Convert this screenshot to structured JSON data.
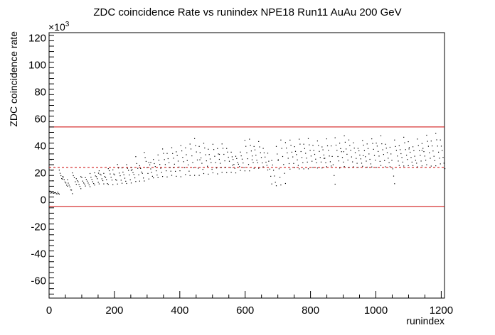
{
  "chart_data": {
    "type": "scatter",
    "title": "ZDC coincidence Rate vs runindex NPE18 Run11 AuAu 200 GeV",
    "xlabel": "runindex",
    "ylabel": "ZDC coincidence rate",
    "y_multiplier_label": "×10",
    "y_multiplier_exponent": "3",
    "xlim": [
      0,
      1210
    ],
    "ylim": [
      -73,
      124
    ],
    "x_ticks": [
      "0",
      "200",
      "400",
      "600",
      "800",
      "1000",
      "1200"
    ],
    "y_ticks": [
      "120",
      "100",
      "80",
      "60",
      "40",
      "20",
      "0",
      "-20",
      "-40",
      "-60"
    ],
    "x_tick_values": [
      0,
      200,
      400,
      600,
      800,
      1000,
      1200
    ],
    "y_tick_values": [
      120,
      100,
      80,
      60,
      40,
      20,
      0,
      -20,
      -40,
      -60
    ],
    "y_units": "thousands",
    "reference_lines": [
      {
        "y": 54,
        "style": "solid",
        "color": "#cc0000"
      },
      {
        "y": 24,
        "style": "dashed",
        "color": "#cc0000"
      },
      {
        "y": -5,
        "style": "solid",
        "color": "#cc0000"
      }
    ],
    "point_segments": [
      [
        0,
        6,
        30,
        5
      ],
      [
        5,
        30,
        10,
        15
      ],
      [
        30,
        22,
        40,
        15
      ],
      [
        40,
        18,
        55,
        10
      ],
      [
        55,
        15,
        70,
        5
      ],
      [
        70,
        20,
        82,
        12
      ],
      [
        82,
        16,
        96,
        9
      ],
      [
        96,
        18,
        110,
        10
      ],
      [
        110,
        16,
        124,
        10
      ],
      [
        124,
        19,
        138,
        11
      ],
      [
        138,
        20,
        152,
        12
      ],
      [
        152,
        22,
        166,
        12
      ],
      [
        166,
        20,
        180,
        11
      ],
      [
        180,
        24,
        194,
        12
      ],
      [
        194,
        22,
        208,
        12
      ],
      [
        208,
        26,
        222,
        13
      ],
      [
        222,
        24,
        236,
        12
      ],
      [
        236,
        27,
        250,
        13
      ],
      [
        250,
        25,
        264,
        14
      ],
      [
        264,
        32,
        276,
        14
      ],
      [
        276,
        26,
        290,
        15
      ],
      [
        290,
        36,
        304,
        16
      ],
      [
        304,
        28,
        318,
        16
      ],
      [
        318,
        30,
        332,
        16
      ],
      [
        332,
        33,
        346,
        17
      ],
      [
        346,
        38,
        360,
        18
      ],
      [
        360,
        34,
        374,
        18
      ],
      [
        374,
        39,
        388,
        18
      ],
      [
        388,
        36,
        402,
        18
      ],
      [
        402,
        41,
        416,
        19
      ],
      [
        416,
        38,
        430,
        18
      ],
      [
        430,
        42,
        444,
        19
      ],
      [
        444,
        46,
        458,
        19
      ],
      [
        458,
        40,
        472,
        19
      ],
      [
        472,
        43,
        486,
        20
      ],
      [
        486,
        38,
        500,
        20
      ],
      [
        500,
        41,
        514,
        20
      ],
      [
        514,
        38,
        528,
        20
      ],
      [
        528,
        42,
        542,
        21
      ],
      [
        542,
        39,
        556,
        21
      ],
      [
        556,
        36,
        570,
        20
      ],
      [
        570,
        33,
        584,
        22
      ],
      [
        584,
        36,
        598,
        22
      ],
      [
        598,
        44,
        612,
        22
      ],
      [
        612,
        46,
        626,
        23
      ],
      [
        626,
        40,
        640,
        24
      ],
      [
        640,
        44,
        654,
        24
      ],
      [
        654,
        38,
        668,
        23
      ],
      [
        668,
        35,
        680,
        12
      ],
      [
        680,
        30,
        694,
        10
      ],
      [
        694,
        40,
        708,
        12
      ],
      [
        708,
        45,
        722,
        13
      ],
      [
        722,
        42,
        736,
        23
      ],
      [
        736,
        44,
        750,
        24
      ],
      [
        750,
        40,
        764,
        23
      ],
      [
        764,
        45,
        778,
        24
      ],
      [
        778,
        42,
        792,
        24
      ],
      [
        792,
        46,
        806,
        25
      ],
      [
        806,
        41,
        820,
        24
      ],
      [
        820,
        44,
        834,
        24
      ],
      [
        834,
        40,
        848,
        25
      ],
      [
        848,
        45,
        862,
        25
      ],
      [
        862,
        40,
        874,
        12
      ],
      [
        874,
        46,
        888,
        24
      ],
      [
        888,
        42,
        902,
        25
      ],
      [
        902,
        47,
        916,
        25
      ],
      [
        916,
        44,
        930,
        25
      ],
      [
        930,
        42,
        944,
        24
      ],
      [
        944,
        39,
        958,
        25
      ],
      [
        958,
        45,
        972,
        25
      ],
      [
        972,
        41,
        986,
        24
      ],
      [
        986,
        46,
        1000,
        25
      ],
      [
        1000,
        43,
        1014,
        25
      ],
      [
        1014,
        47,
        1028,
        24
      ],
      [
        1028,
        42,
        1042,
        25
      ],
      [
        1042,
        40,
        1056,
        12
      ],
      [
        1056,
        44,
        1070,
        25
      ],
      [
        1070,
        41,
        1084,
        25
      ],
      [
        1084,
        46,
        1098,
        26
      ],
      [
        1098,
        43,
        1112,
        25
      ],
      [
        1112,
        39,
        1126,
        24
      ],
      [
        1126,
        45,
        1140,
        25
      ],
      [
        1140,
        42,
        1154,
        26
      ],
      [
        1154,
        48,
        1168,
        26
      ],
      [
        1168,
        44,
        1182,
        26
      ],
      [
        1182,
        50,
        1196,
        27
      ],
      [
        1196,
        45,
        1210,
        24
      ]
    ],
    "scattered_points": [
      [
        520,
        34
      ],
      [
        700,
        30
      ],
      [
        900,
        36
      ],
      [
        1100,
        38
      ],
      [
        310,
        28
      ],
      [
        460,
        30
      ],
      [
        560,
        26
      ],
      [
        840,
        31
      ],
      [
        960,
        33
      ],
      [
        1140,
        37
      ],
      [
        150,
        20
      ],
      [
        250,
        22
      ],
      [
        380,
        24
      ],
      [
        620,
        30
      ]
    ],
    "marker_color": "#000000",
    "grid": false,
    "legend": "none"
  }
}
